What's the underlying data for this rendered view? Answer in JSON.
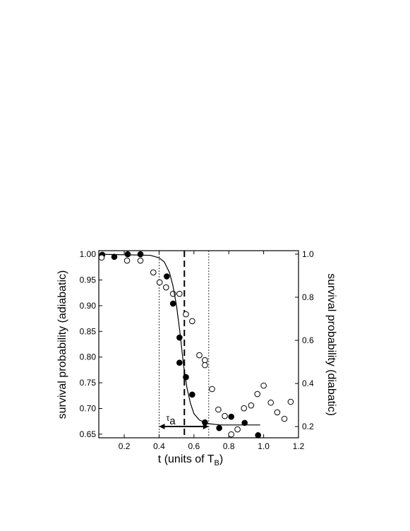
{
  "chart_data": {
    "type": "scatter",
    "xlabel": "t (units of T",
    "xlabel_sub": "B",
    "xlabel_end": ")",
    "ylabel": "survival probability (adiabatic)",
    "y2label": "survival probability (diabatic)",
    "xlim": [
      0.054,
      1.2
    ],
    "ylim": [
      0.643,
      1.007
    ],
    "y2lim": [
      0.148,
      1.016
    ],
    "xticks": [
      0.2,
      0.4,
      0.6,
      0.8,
      {
        "value": 1,
        "label": "1.0"
      },
      1.2
    ],
    "yticks": [
      0.65,
      {
        "value": 0.7,
        "label": "0.70"
      },
      0.75,
      {
        "value": 0.8,
        "label": "0.80"
      },
      0.85,
      {
        "value": 0.9,
        "label": "0.90"
      },
      0.95,
      {
        "value": 1,
        "label": "1.00"
      }
    ],
    "y2ticks": [
      0.2,
      0.4,
      0.6,
      0.8,
      {
        "value": 1,
        "label": "1.0"
      }
    ],
    "series": [
      {
        "style": "filled",
        "color": "#000000",
        "x": [
          0.074,
          0.143,
          0.22,
          0.293,
          0.444,
          0.48,
          0.517,
          0.517,
          0.554,
          0.59,
          0.663,
          0.745,
          0.814,
          0.891,
          0.968
        ],
        "values": [
          0.999,
          0.995,
          1.0,
          1.0,
          0.957,
          0.904,
          0.838,
          0.789,
          0.761,
          0.727,
          0.673,
          0.662,
          0.684,
          0.672,
          0.648
        ]
      },
      {
        "style": "open",
        "color": "#000000",
        "axis": "y2",
        "x": [
          0.07,
          0.216,
          0.293,
          0.367,
          0.403,
          0.44,
          0.48,
          0.517,
          0.554,
          0.59,
          0.631,
          0.663,
          0.663,
          0.704,
          0.74,
          0.777,
          0.814,
          0.85,
          0.887,
          0.928,
          0.964,
          1.0,
          1.041,
          1.078,
          1.119,
          1.155
        ],
        "values": [
          0.984,
          0.97,
          0.97,
          0.915,
          0.869,
          0.846,
          0.816,
          0.816,
          0.721,
          0.689,
          0.531,
          0.508,
          0.485,
          0.374,
          0.279,
          0.249,
          0.164,
          0.187,
          0.285,
          0.298,
          0.351,
          0.39,
          0.311,
          0.266,
          0.236,
          0.315
        ]
      },
      {
        "style": "line",
        "color": "#000000",
        "x": [
          0.07,
          0.35,
          0.4,
          0.43,
          0.46,
          0.48,
          0.5,
          0.52,
          0.54,
          0.56,
          0.58,
          0.6,
          0.63,
          0.67,
          0.75,
          0.98
        ],
        "values": [
          1.0,
          0.998,
          0.993,
          0.985,
          0.964,
          0.938,
          0.9,
          0.847,
          0.785,
          0.74,
          0.71,
          0.69,
          0.678,
          0.671,
          0.668,
          0.668
        ]
      }
    ],
    "vlines": [
      {
        "x": 0.4,
        "style": "dotted"
      },
      {
        "x": 0.545,
        "style": "dashed"
      },
      {
        "x": 0.685,
        "style": "dotted"
      }
    ],
    "arrow": {
      "x": [
        0.4,
        0.685
      ],
      "y": 0.665
    },
    "arrow_label": "τ",
    "arrow_label_sub": "a"
  }
}
